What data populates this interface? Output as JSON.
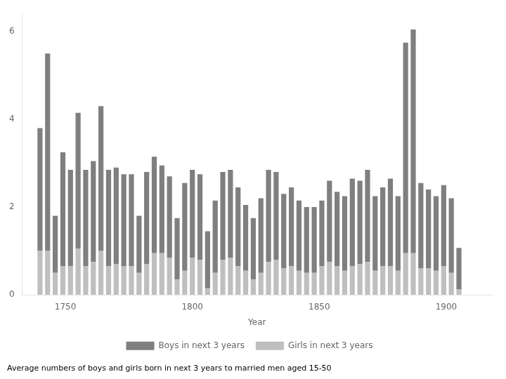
{
  "chart_data": {
    "type": "bar",
    "stacked": true,
    "grid": false,
    "legend": "bottom",
    "xlabel": "Year",
    "caption": "Average numbers of boys and girls born in next 3 years to married men aged 15-50",
    "x": [
      1740,
      1743,
      1746,
      1749,
      1752,
      1755,
      1758,
      1761,
      1764,
      1767,
      1770,
      1773,
      1776,
      1779,
      1782,
      1785,
      1788,
      1791,
      1794,
      1797,
      1800,
      1803,
      1806,
      1809,
      1812,
      1815,
      1818,
      1821,
      1824,
      1827,
      1830,
      1833,
      1836,
      1839,
      1842,
      1845,
      1848,
      1851,
      1854,
      1857,
      1860,
      1863,
      1866,
      1869,
      1872,
      1875,
      1878,
      1881,
      1884,
      1887,
      1890,
      1893,
      1896,
      1899,
      1902,
      1905,
      1908
    ],
    "series": [
      {
        "name": "Girls in next 3 years",
        "color": "#bfbfbf",
        "values": [
          1.0,
          1.0,
          0.5,
          0.65,
          0.65,
          1.05,
          0.65,
          0.75,
          1.0,
          0.65,
          0.7,
          0.65,
          0.65,
          0.5,
          0.7,
          0.95,
          0.95,
          0.85,
          0.35,
          0.55,
          0.85,
          0.8,
          0.15,
          0.5,
          0.8,
          0.85,
          0.65,
          0.55,
          0.35,
          0.5,
          0.75,
          0.8,
          0.6,
          0.65,
          0.55,
          0.5,
          0.5,
          0.65,
          0.75,
          0.65,
          0.55,
          0.65,
          0.7,
          0.75,
          0.55,
          0.65,
          0.65,
          0.55,
          0.95,
          0.95,
          0.6,
          0.6,
          0.55,
          0.65,
          0.5,
          0.12,
          0.0
        ]
      },
      {
        "name": "Boys in next 3 years",
        "color": "#7f7f7f",
        "values": [
          2.8,
          4.5,
          1.3,
          2.6,
          2.2,
          3.1,
          2.2,
          2.3,
          3.3,
          2.2,
          2.2,
          2.1,
          2.1,
          1.3,
          2.1,
          2.2,
          2.0,
          1.85,
          1.4,
          2.0,
          2.0,
          1.95,
          1.3,
          1.65,
          2.0,
          2.0,
          1.8,
          1.5,
          1.4,
          1.7,
          2.1,
          2.0,
          1.7,
          1.8,
          1.6,
          1.5,
          1.5,
          1.5,
          1.85,
          1.7,
          1.7,
          2.0,
          1.9,
          2.1,
          1.7,
          1.8,
          2.0,
          1.7,
          4.8,
          5.1,
          1.95,
          1.8,
          1.7,
          1.85,
          1.7,
          0.95,
          0.0
        ]
      }
    ],
    "xlim": [
      1733,
      1918
    ],
    "xticks": [
      1750,
      1800,
      1850,
      1900
    ],
    "ylim": [
      0,
      6.4
    ],
    "yticks": [
      0,
      2,
      4,
      6
    ]
  }
}
